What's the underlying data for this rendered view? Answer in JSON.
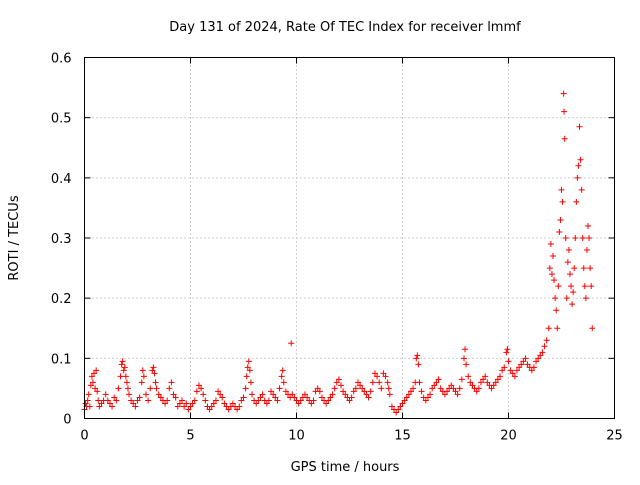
{
  "chart_data": {
    "type": "scatter",
    "title": "Day 131 of 2024, Rate Of TEC Index for receiver lmmf",
    "xlabel": "GPS time / hours",
    "ylabel": "ROTI / TECUs",
    "xlim": [
      0,
      25
    ],
    "ylim": [
      0,
      0.6
    ],
    "xticks": [
      0,
      5,
      10,
      15,
      20,
      25
    ],
    "yticks": [
      0,
      0.1,
      0.2,
      0.3,
      0.4,
      0.5,
      0.6
    ],
    "xtick_labels": [
      "0",
      "5",
      "10",
      "15",
      "20",
      "25"
    ],
    "ytick_labels": [
      "0",
      "0.1",
      "0.2",
      "0.3",
      "0.4",
      "0.5",
      "0.6"
    ],
    "grid": true,
    "marker": "+",
    "color": "#ff0000",
    "series": [
      {
        "name": "ROTI",
        "points": [
          [
            0.0,
            0.015
          ],
          [
            0.05,
            0.025
          ],
          [
            0.1,
            0.02
          ],
          [
            0.15,
            0.03
          ],
          [
            0.2,
            0.04
          ],
          [
            0.25,
            0.02
          ],
          [
            0.3,
            0.055
          ],
          [
            0.35,
            0.07
          ],
          [
            0.4,
            0.06
          ],
          [
            0.45,
            0.075
          ],
          [
            0.5,
            0.05
          ],
          [
            0.55,
            0.08
          ],
          [
            0.6,
            0.045
          ],
          [
            0.65,
            0.03
          ],
          [
            0.7,
            0.02
          ],
          [
            0.8,
            0.025
          ],
          [
            0.9,
            0.03
          ],
          [
            1.0,
            0.04
          ],
          [
            1.1,
            0.03
          ],
          [
            1.2,
            0.025
          ],
          [
            1.3,
            0.02
          ],
          [
            1.4,
            0.035
          ],
          [
            1.5,
            0.03
          ],
          [
            1.6,
            0.05
          ],
          [
            1.7,
            0.07
          ],
          [
            1.75,
            0.09
          ],
          [
            1.8,
            0.095
          ],
          [
            1.85,
            0.08
          ],
          [
            1.9,
            0.085
          ],
          [
            1.95,
            0.07
          ],
          [
            2.0,
            0.06
          ],
          [
            2.05,
            0.05
          ],
          [
            2.1,
            0.04
          ],
          [
            2.2,
            0.03
          ],
          [
            2.3,
            0.025
          ],
          [
            2.4,
            0.02
          ],
          [
            2.5,
            0.03
          ],
          [
            2.6,
            0.035
          ],
          [
            2.7,
            0.06
          ],
          [
            2.75,
            0.08
          ],
          [
            2.8,
            0.07
          ],
          [
            2.9,
            0.04
          ],
          [
            3.0,
            0.03
          ],
          [
            3.1,
            0.05
          ],
          [
            3.2,
            0.08
          ],
          [
            3.25,
            0.085
          ],
          [
            3.3,
            0.075
          ],
          [
            3.35,
            0.06
          ],
          [
            3.4,
            0.05
          ],
          [
            3.5,
            0.04
          ],
          [
            3.6,
            0.035
          ],
          [
            3.7,
            0.03
          ],
          [
            3.8,
            0.025
          ],
          [
            3.9,
            0.03
          ],
          [
            4.0,
            0.05
          ],
          [
            4.1,
            0.06
          ],
          [
            4.2,
            0.04
          ],
          [
            4.3,
            0.035
          ],
          [
            4.4,
            0.02
          ],
          [
            4.5,
            0.025
          ],
          [
            4.6,
            0.03
          ],
          [
            4.7,
            0.02
          ],
          [
            4.8,
            0.025
          ],
          [
            4.9,
            0.015
          ],
          [
            5.0,
            0.02
          ],
          [
            5.1,
            0.025
          ],
          [
            5.2,
            0.03
          ],
          [
            5.3,
            0.045
          ],
          [
            5.4,
            0.055
          ],
          [
            5.5,
            0.05
          ],
          [
            5.6,
            0.04
          ],
          [
            5.7,
            0.03
          ],
          [
            5.8,
            0.02
          ],
          [
            5.9,
            0.015
          ],
          [
            6.0,
            0.02
          ],
          [
            6.1,
            0.025
          ],
          [
            6.2,
            0.03
          ],
          [
            6.3,
            0.045
          ],
          [
            6.4,
            0.04
          ],
          [
            6.5,
            0.035
          ],
          [
            6.6,
            0.025
          ],
          [
            6.7,
            0.02
          ],
          [
            6.8,
            0.015
          ],
          [
            6.9,
            0.02
          ],
          [
            7.0,
            0.025
          ],
          [
            7.1,
            0.02
          ],
          [
            7.2,
            0.015
          ],
          [
            7.3,
            0.02
          ],
          [
            7.4,
            0.03
          ],
          [
            7.5,
            0.035
          ],
          [
            7.6,
            0.05
          ],
          [
            7.65,
            0.07
          ],
          [
            7.7,
            0.085
          ],
          [
            7.75,
            0.095
          ],
          [
            7.8,
            0.08
          ],
          [
            7.85,
            0.06
          ],
          [
            7.9,
            0.04
          ],
          [
            8.0,
            0.03
          ],
          [
            8.1,
            0.025
          ],
          [
            8.2,
            0.03
          ],
          [
            8.3,
            0.035
          ],
          [
            8.4,
            0.04
          ],
          [
            8.5,
            0.03
          ],
          [
            8.6,
            0.025
          ],
          [
            8.7,
            0.03
          ],
          [
            8.8,
            0.045
          ],
          [
            8.9,
            0.04
          ],
          [
            9.0,
            0.035
          ],
          [
            9.1,
            0.03
          ],
          [
            9.2,
            0.05
          ],
          [
            9.3,
            0.07
          ],
          [
            9.35,
            0.08
          ],
          [
            9.4,
            0.06
          ],
          [
            9.5,
            0.045
          ],
          [
            9.6,
            0.04
          ],
          [
            9.7,
            0.035
          ],
          [
            9.75,
            0.125
          ],
          [
            9.8,
            0.04
          ],
          [
            9.9,
            0.035
          ],
          [
            10.0,
            0.03
          ],
          [
            10.1,
            0.025
          ],
          [
            10.2,
            0.03
          ],
          [
            10.3,
            0.035
          ],
          [
            10.4,
            0.04
          ],
          [
            10.5,
            0.035
          ],
          [
            10.6,
            0.03
          ],
          [
            10.7,
            0.025
          ],
          [
            10.8,
            0.03
          ],
          [
            10.9,
            0.045
          ],
          [
            11.0,
            0.05
          ],
          [
            11.1,
            0.045
          ],
          [
            11.2,
            0.035
          ],
          [
            11.3,
            0.03
          ],
          [
            11.4,
            0.025
          ],
          [
            11.5,
            0.03
          ],
          [
            11.6,
            0.035
          ],
          [
            11.7,
            0.04
          ],
          [
            11.8,
            0.05
          ],
          [
            11.9,
            0.06
          ],
          [
            12.0,
            0.065
          ],
          [
            12.1,
            0.055
          ],
          [
            12.2,
            0.045
          ],
          [
            12.3,
            0.04
          ],
          [
            12.4,
            0.035
          ],
          [
            12.5,
            0.03
          ],
          [
            12.6,
            0.035
          ],
          [
            12.7,
            0.045
          ],
          [
            12.8,
            0.05
          ],
          [
            12.9,
            0.06
          ],
          [
            13.0,
            0.055
          ],
          [
            13.1,
            0.05
          ],
          [
            13.2,
            0.045
          ],
          [
            13.3,
            0.04
          ],
          [
            13.4,
            0.035
          ],
          [
            13.5,
            0.045
          ],
          [
            13.6,
            0.06
          ],
          [
            13.7,
            0.075
          ],
          [
            13.8,
            0.07
          ],
          [
            13.9,
            0.06
          ],
          [
            14.0,
            0.05
          ],
          [
            14.1,
            0.075
          ],
          [
            14.2,
            0.07
          ],
          [
            14.3,
            0.06
          ],
          [
            14.35,
            0.05
          ],
          [
            14.4,
            0.04
          ],
          [
            14.5,
            0.02
          ],
          [
            14.6,
            0.015
          ],
          [
            14.7,
            0.01
          ],
          [
            14.8,
            0.015
          ],
          [
            14.9,
            0.02
          ],
          [
            15.0,
            0.025
          ],
          [
            15.1,
            0.03
          ],
          [
            15.2,
            0.035
          ],
          [
            15.3,
            0.04
          ],
          [
            15.4,
            0.045
          ],
          [
            15.5,
            0.05
          ],
          [
            15.6,
            0.06
          ],
          [
            15.65,
            0.1
          ],
          [
            15.7,
            0.105
          ],
          [
            15.75,
            0.09
          ],
          [
            15.8,
            0.06
          ],
          [
            15.9,
            0.045
          ],
          [
            16.0,
            0.035
          ],
          [
            16.1,
            0.03
          ],
          [
            16.2,
            0.035
          ],
          [
            16.3,
            0.04
          ],
          [
            16.4,
            0.05
          ],
          [
            16.5,
            0.055
          ],
          [
            16.6,
            0.06
          ],
          [
            16.7,
            0.065
          ],
          [
            16.8,
            0.05
          ],
          [
            16.9,
            0.045
          ],
          [
            17.0,
            0.04
          ],
          [
            17.1,
            0.045
          ],
          [
            17.2,
            0.05
          ],
          [
            17.3,
            0.055
          ],
          [
            17.4,
            0.05
          ],
          [
            17.5,
            0.045
          ],
          [
            17.6,
            0.04
          ],
          [
            17.7,
            0.05
          ],
          [
            17.8,
            0.065
          ],
          [
            17.9,
            0.1
          ],
          [
            17.95,
            0.115
          ],
          [
            18.0,
            0.09
          ],
          [
            18.1,
            0.07
          ],
          [
            18.2,
            0.06
          ],
          [
            18.3,
            0.055
          ],
          [
            18.4,
            0.05
          ],
          [
            18.5,
            0.045
          ],
          [
            18.6,
            0.05
          ],
          [
            18.7,
            0.06
          ],
          [
            18.8,
            0.065
          ],
          [
            18.9,
            0.07
          ],
          [
            19.0,
            0.06
          ],
          [
            19.1,
            0.055
          ],
          [
            19.2,
            0.05
          ],
          [
            19.3,
            0.055
          ],
          [
            19.4,
            0.06
          ],
          [
            19.5,
            0.065
          ],
          [
            19.6,
            0.07
          ],
          [
            19.7,
            0.08
          ],
          [
            19.8,
            0.085
          ],
          [
            19.9,
            0.11
          ],
          [
            19.95,
            0.115
          ],
          [
            20.0,
            0.095
          ],
          [
            20.1,
            0.08
          ],
          [
            20.2,
            0.075
          ],
          [
            20.3,
            0.07
          ],
          [
            20.4,
            0.08
          ],
          [
            20.5,
            0.085
          ],
          [
            20.6,
            0.09
          ],
          [
            20.7,
            0.095
          ],
          [
            20.8,
            0.1
          ],
          [
            20.9,
            0.09
          ],
          [
            21.0,
            0.085
          ],
          [
            21.1,
            0.08
          ],
          [
            21.2,
            0.085
          ],
          [
            21.3,
            0.095
          ],
          [
            21.4,
            0.1
          ],
          [
            21.5,
            0.105
          ],
          [
            21.6,
            0.11
          ],
          [
            21.7,
            0.12
          ],
          [
            21.8,
            0.13
          ],
          [
            21.9,
            0.15
          ],
          [
            21.95,
            0.25
          ],
          [
            22.0,
            0.29
          ],
          [
            22.05,
            0.24
          ],
          [
            22.1,
            0.27
          ],
          [
            22.15,
            0.23
          ],
          [
            22.2,
            0.2
          ],
          [
            22.25,
            0.18
          ],
          [
            22.3,
            0.15
          ],
          [
            22.35,
            0.22
          ],
          [
            22.4,
            0.31
          ],
          [
            22.45,
            0.33
          ],
          [
            22.5,
            0.38
          ],
          [
            22.55,
            0.36
          ],
          [
            22.6,
            0.54
          ],
          [
            22.62,
            0.51
          ],
          [
            22.65,
            0.465
          ],
          [
            22.7,
            0.3
          ],
          [
            22.75,
            0.2
          ],
          [
            22.8,
            0.26
          ],
          [
            22.85,
            0.28
          ],
          [
            22.9,
            0.24
          ],
          [
            22.95,
            0.22
          ],
          [
            23.0,
            0.19
          ],
          [
            23.05,
            0.21
          ],
          [
            23.1,
            0.25
          ],
          [
            23.15,
            0.3
          ],
          [
            23.2,
            0.36
          ],
          [
            23.25,
            0.4
          ],
          [
            23.3,
            0.42
          ],
          [
            23.35,
            0.485
          ],
          [
            23.4,
            0.43
          ],
          [
            23.45,
            0.38
          ],
          [
            23.5,
            0.3
          ],
          [
            23.55,
            0.25
          ],
          [
            23.6,
            0.22
          ],
          [
            23.65,
            0.2
          ],
          [
            23.7,
            0.28
          ],
          [
            23.75,
            0.32
          ],
          [
            23.8,
            0.3
          ],
          [
            23.85,
            0.25
          ],
          [
            23.9,
            0.22
          ],
          [
            23.95,
            0.15
          ]
        ]
      }
    ]
  }
}
